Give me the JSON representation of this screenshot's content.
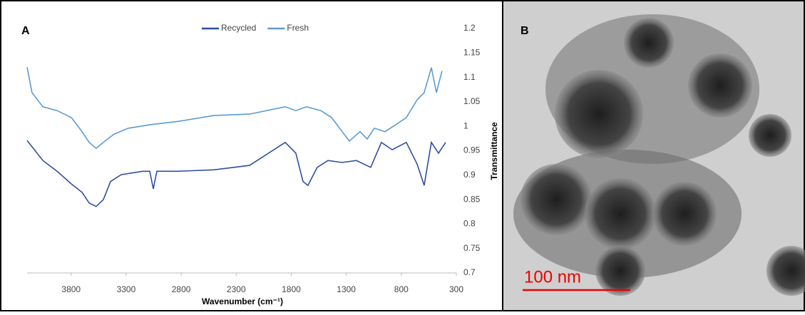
{
  "chart_data": {
    "type": "line",
    "panel_label": "A",
    "x_label": "Wavenumber (cm⁻¹)",
    "y_label": "Transmittance",
    "xlim": [
      4200,
      300
    ],
    "xticks": [
      3800,
      3300,
      2800,
      2300,
      1800,
      1300,
      800,
      300
    ],
    "ylim": [
      0.7,
      1.2
    ],
    "yticks": [
      0.7,
      0.75,
      0.8,
      0.85,
      0.9,
      0.95,
      1,
      1.05,
      1.1,
      1.15,
      1.2
    ],
    "y_axis_side": "right",
    "legend": "top",
    "series": [
      {
        "name": "Recycled",
        "color": "#2f4f9f",
        "x": [
          4200,
          4057,
          3928,
          3798,
          3701,
          3636,
          3572,
          3507,
          3442,
          3345,
          3151,
          3086,
          3053,
          3021,
          2827,
          2503,
          2179,
          1855,
          1758,
          1693,
          1648,
          1564,
          1466,
          1337,
          1208,
          1078,
          981,
          883,
          754,
          657,
          592,
          527,
          462,
          397
        ],
        "values": [
          0.971,
          0.93,
          0.908,
          0.882,
          0.865,
          0.843,
          0.836,
          0.85,
          0.887,
          0.901,
          0.908,
          0.908,
          0.872,
          0.908,
          0.908,
          0.911,
          0.92,
          0.967,
          0.945,
          0.887,
          0.879,
          0.916,
          0.93,
          0.926,
          0.93,
          0.916,
          0.967,
          0.952,
          0.967,
          0.923,
          0.879,
          0.967,
          0.945,
          0.967
        ]
      },
      {
        "name": "Fresh",
        "color": "#5b9bd5",
        "x": [
          4200,
          4155,
          4057,
          3928,
          3798,
          3701,
          3636,
          3572,
          3507,
          3410,
          3280,
          3086,
          2827,
          2503,
          2179,
          1855,
          1758,
          1661,
          1531,
          1434,
          1337,
          1272,
          1175,
          1110,
          1045,
          948,
          851,
          754,
          657,
          592,
          527,
          481,
          430
        ],
        "values": [
          1.121,
          1.069,
          1.04,
          1.032,
          1.018,
          0.989,
          0.967,
          0.955,
          0.967,
          0.984,
          0.996,
          1.003,
          1.01,
          1.022,
          1.025,
          1.04,
          1.032,
          1.04,
          1.032,
          1.018,
          0.989,
          0.97,
          0.989,
          0.974,
          0.996,
          0.989,
          1.003,
          1.018,
          1.054,
          1.069,
          1.12,
          1.069,
          1.113
        ]
      }
    ]
  },
  "image": {
    "panel_label": "B",
    "scale_bar": "100 nm"
  }
}
